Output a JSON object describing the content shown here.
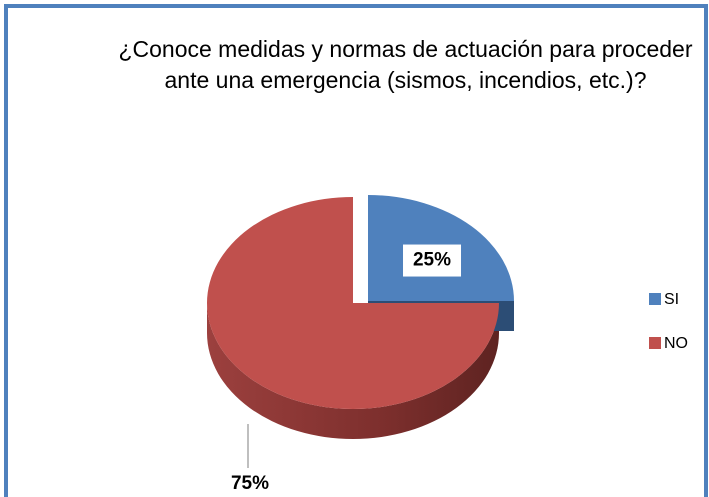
{
  "chart_data": {
    "type": "pie",
    "title": "¿Conoce medidas y normas de actuación para proceder ante una emergencia (sismos, incendios, etc.)?",
    "categories": [
      "SI",
      "NO"
    ],
    "values": [
      25,
      75
    ],
    "value_labels": [
      "25%",
      "75%"
    ],
    "colors": [
      "#4f81bd",
      "#c0504d"
    ],
    "legend": "right"
  }
}
